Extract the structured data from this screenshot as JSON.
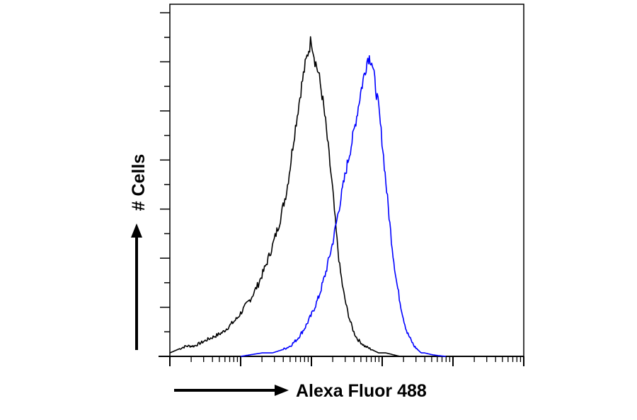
{
  "chart_data": {
    "type": "area",
    "title": "",
    "xlabel": "Alexa Fluor 488",
    "ylabel": "# Cells",
    "xscale": "log",
    "xlim": [
      1,
      100000
    ],
    "ylim": [
      0,
      1
    ],
    "grid": false,
    "legend": "none",
    "series": [
      {
        "color": "#000000",
        "x": [
          1.0,
          1.3,
          1.7,
          2.2,
          2.8,
          3.5,
          4.5,
          5.6,
          7.1,
          8.9,
          11.2,
          14.1,
          17.8,
          22.4,
          28.2,
          35.5,
          44.7,
          50.1,
          56.2,
          63.1,
          70.8,
          79.4,
          89.1,
          100,
          112,
          126,
          141,
          158,
          178,
          200,
          224,
          251,
          282,
          316,
          355,
          398,
          447,
          501,
          562,
          708,
          891,
          1122,
          1413,
          1778
        ],
        "y": [
          0.01,
          0.02,
          0.03,
          0.03,
          0.04,
          0.05,
          0.06,
          0.07,
          0.09,
          0.11,
          0.14,
          0.17,
          0.21,
          0.26,
          0.32,
          0.39,
          0.48,
          0.55,
          0.63,
          0.7,
          0.77,
          0.83,
          0.88,
          0.92,
          0.86,
          0.82,
          0.76,
          0.68,
          0.58,
          0.48,
          0.36,
          0.26,
          0.19,
          0.14,
          0.1,
          0.07,
          0.05,
          0.04,
          0.03,
          0.02,
          0.01,
          0.01,
          0.005,
          0.0
        ]
      },
      {
        "color": "#0000ff",
        "x": [
          10,
          14.1,
          20,
          28.2,
          39.8,
          50.1,
          63.1,
          79.4,
          100,
          126,
          158,
          200,
          251,
          316,
          398,
          447,
          501,
          562,
          631,
          708,
          794,
          891,
          1000,
          1122,
          1259,
          1413,
          1585,
          1778,
          1995,
          2239,
          2512,
          2818,
          3162,
          3548,
          3981,
          5012,
          6310,
          7943
        ],
        "y": [
          0.0,
          0.005,
          0.01,
          0.01,
          0.02,
          0.03,
          0.05,
          0.08,
          0.12,
          0.17,
          0.24,
          0.33,
          0.44,
          0.55,
          0.65,
          0.71,
          0.77,
          0.82,
          0.87,
          0.86,
          0.79,
          0.72,
          0.62,
          0.51,
          0.4,
          0.3,
          0.22,
          0.16,
          0.11,
          0.07,
          0.05,
          0.03,
          0.02,
          0.01,
          0.01,
          0.005,
          0.002,
          0.0
        ]
      }
    ]
  }
}
